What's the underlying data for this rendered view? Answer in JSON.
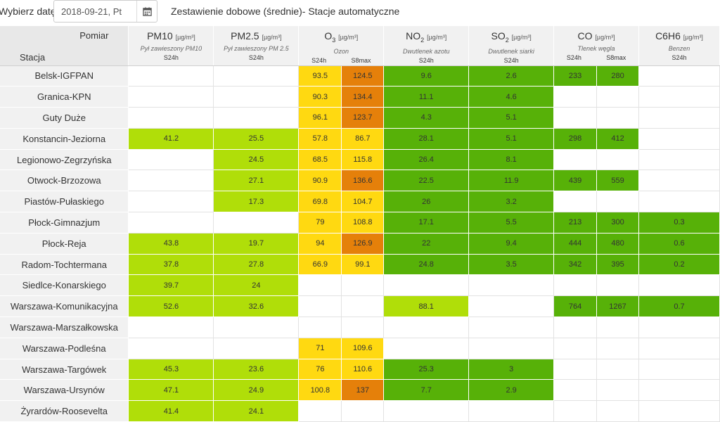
{
  "header": {
    "date_label": "Wybierz datę:",
    "date_value": "2018-09-21, Pt",
    "title": "Zestawienie dobowe (średnie)- Stacje automatyczne",
    "calendar_icon": "calendar-icon"
  },
  "table": {
    "corner_top": "Pomiar",
    "corner_bottom": "Stacja",
    "pollutants": [
      {
        "id": "pm10",
        "name": "PM10",
        "sub": "",
        "unit": "[µg/m³]",
        "desc": "Pył zawieszony PM10",
        "aggs": [
          "S24h"
        ]
      },
      {
        "id": "pm25",
        "name": "PM2.5",
        "sub": "",
        "unit": "[µg/m³]",
        "desc": "Pył zawieszony PM 2.5",
        "aggs": [
          "S24h"
        ]
      },
      {
        "id": "o3",
        "name": "O",
        "sub": "3",
        "unit": "[µg/m³]",
        "desc": "Ozon",
        "aggs": [
          "S24h",
          "S8max"
        ]
      },
      {
        "id": "no2",
        "name": "NO",
        "sub": "2",
        "unit": "[µg/m³]",
        "desc": "Dwutlenek azotu",
        "aggs": [
          "S24h"
        ]
      },
      {
        "id": "so2",
        "name": "SO",
        "sub": "2",
        "unit": "[µg/m³]",
        "desc": "Dwutlenek siarki",
        "aggs": [
          "S24h"
        ]
      },
      {
        "id": "co",
        "name": "CO",
        "sub": "",
        "unit": "[µg/m³]",
        "desc": "Tlenek węgla",
        "aggs": [
          "S24h",
          "S8max"
        ]
      },
      {
        "id": "c6h6",
        "name": "C6H6",
        "sub": "",
        "unit": "[µg/m³]",
        "desc": "Benzen",
        "aggs": [
          "S24h"
        ]
      }
    ],
    "colors": {
      "lg": "#b0de09",
      "dg": "#57b108",
      "yl": "#ffd911",
      "or": "#e5800a"
    },
    "rows": [
      {
        "station": "Belsk-IGFPAN",
        "cells": [
          [
            "",
            ""
          ],
          [
            "",
            ""
          ],
          [
            "93.5",
            "yl"
          ],
          [
            "124.5",
            "or"
          ],
          [
            "9.6",
            "dg"
          ],
          [
            "2.6",
            "dg"
          ],
          [
            "233",
            "dg"
          ],
          [
            "280",
            "dg"
          ],
          [
            "",
            ""
          ]
        ]
      },
      {
        "station": "Granica-KPN",
        "cells": [
          [
            "",
            ""
          ],
          [
            "",
            ""
          ],
          [
            "90.3",
            "yl"
          ],
          [
            "134.4",
            "or"
          ],
          [
            "11.1",
            "dg"
          ],
          [
            "4.6",
            "dg"
          ],
          [
            "",
            ""
          ],
          [
            "",
            ""
          ],
          [
            "",
            ""
          ]
        ]
      },
      {
        "station": "Guty Duże",
        "cells": [
          [
            "",
            ""
          ],
          [
            "",
            ""
          ],
          [
            "96.1",
            "yl"
          ],
          [
            "123.7",
            "or"
          ],
          [
            "4.3",
            "dg"
          ],
          [
            "5.1",
            "dg"
          ],
          [
            "",
            ""
          ],
          [
            "",
            ""
          ],
          [
            "",
            ""
          ]
        ]
      },
      {
        "station": "Konstancin-Jeziorna",
        "cells": [
          [
            "41.2",
            "lg"
          ],
          [
            "25.5",
            "lg"
          ],
          [
            "57.8",
            "yl"
          ],
          [
            "86.7",
            "yl"
          ],
          [
            "28.1",
            "dg"
          ],
          [
            "5.1",
            "dg"
          ],
          [
            "298",
            "dg"
          ],
          [
            "412",
            "dg"
          ],
          [
            "",
            ""
          ]
        ]
      },
      {
        "station": "Legionowo-Zegrzyńska",
        "cells": [
          [
            "",
            ""
          ],
          [
            "24.5",
            "lg"
          ],
          [
            "68.5",
            "yl"
          ],
          [
            "115.8",
            "yl"
          ],
          [
            "26.4",
            "dg"
          ],
          [
            "8.1",
            "dg"
          ],
          [
            "",
            ""
          ],
          [
            "",
            ""
          ],
          [
            "",
            ""
          ]
        ]
      },
      {
        "station": "Otwock-Brzozowa",
        "cells": [
          [
            "",
            ""
          ],
          [
            "27.1",
            "lg"
          ],
          [
            "90.9",
            "yl"
          ],
          [
            "136.6",
            "or"
          ],
          [
            "22.5",
            "dg"
          ],
          [
            "11.9",
            "dg"
          ],
          [
            "439",
            "dg"
          ],
          [
            "559",
            "dg"
          ],
          [
            "",
            ""
          ]
        ]
      },
      {
        "station": "Piastów-Pułaskiego",
        "cells": [
          [
            "",
            ""
          ],
          [
            "17.3",
            "lg"
          ],
          [
            "69.8",
            "yl"
          ],
          [
            "104.7",
            "yl"
          ],
          [
            "26",
            "dg"
          ],
          [
            "3.2",
            "dg"
          ],
          [
            "",
            ""
          ],
          [
            "",
            ""
          ],
          [
            "",
            ""
          ]
        ]
      },
      {
        "station": "Płock-Gimnazjum",
        "cells": [
          [
            "",
            ""
          ],
          [
            "",
            ""
          ],
          [
            "79",
            "yl"
          ],
          [
            "108.8",
            "yl"
          ],
          [
            "17.1",
            "dg"
          ],
          [
            "5.5",
            "dg"
          ],
          [
            "213",
            "dg"
          ],
          [
            "300",
            "dg"
          ],
          [
            "0.3",
            "dg"
          ]
        ]
      },
      {
        "station": "Płock-Reja",
        "cells": [
          [
            "43.8",
            "lg"
          ],
          [
            "19.7",
            "lg"
          ],
          [
            "94",
            "yl"
          ],
          [
            "126.9",
            "or"
          ],
          [
            "22",
            "dg"
          ],
          [
            "9.4",
            "dg"
          ],
          [
            "444",
            "dg"
          ],
          [
            "480",
            "dg"
          ],
          [
            "0.6",
            "dg"
          ]
        ]
      },
      {
        "station": "Radom-Tochtermana",
        "cells": [
          [
            "37.8",
            "lg"
          ],
          [
            "27.8",
            "lg"
          ],
          [
            "66.9",
            "yl"
          ],
          [
            "99.1",
            "yl"
          ],
          [
            "24.8",
            "dg"
          ],
          [
            "3.5",
            "dg"
          ],
          [
            "342",
            "dg"
          ],
          [
            "395",
            "dg"
          ],
          [
            "0.2",
            "dg"
          ]
        ]
      },
      {
        "station": "Siedlce-Konarskiego",
        "cells": [
          [
            "39.7",
            "lg"
          ],
          [
            "24",
            "lg"
          ],
          [
            "",
            ""
          ],
          [
            "",
            ""
          ],
          [
            "",
            ""
          ],
          [
            "",
            ""
          ],
          [
            "",
            ""
          ],
          [
            "",
            ""
          ],
          [
            "",
            ""
          ]
        ]
      },
      {
        "station": "Warszawa-Komunikacyjna",
        "cells": [
          [
            "52.6",
            "lg"
          ],
          [
            "32.6",
            "lg"
          ],
          [
            "",
            ""
          ],
          [
            "",
            ""
          ],
          [
            "88.1",
            "lg"
          ],
          [
            "",
            ""
          ],
          [
            "764",
            "dg"
          ],
          [
            "1267",
            "dg"
          ],
          [
            "0.7",
            "dg"
          ]
        ]
      },
      {
        "station": "Warszawa-Marszałkowska",
        "cells": [
          [
            "",
            ""
          ],
          [
            "",
            ""
          ],
          [
            "",
            ""
          ],
          [
            "",
            ""
          ],
          [
            "",
            ""
          ],
          [
            "",
            ""
          ],
          [
            "",
            ""
          ],
          [
            "",
            ""
          ],
          [
            "",
            ""
          ]
        ]
      },
      {
        "station": "Warszawa-Podleśna",
        "cells": [
          [
            "",
            ""
          ],
          [
            "",
            ""
          ],
          [
            "71",
            "yl"
          ],
          [
            "109.6",
            "yl"
          ],
          [
            "",
            ""
          ],
          [
            "",
            ""
          ],
          [
            "",
            ""
          ],
          [
            "",
            ""
          ],
          [
            "",
            ""
          ]
        ]
      },
      {
        "station": "Warszawa-Targówek",
        "cells": [
          [
            "45.3",
            "lg"
          ],
          [
            "23.6",
            "lg"
          ],
          [
            "76",
            "yl"
          ],
          [
            "110.6",
            "yl"
          ],
          [
            "25.3",
            "dg"
          ],
          [
            "3",
            "dg"
          ],
          [
            "",
            ""
          ],
          [
            "",
            ""
          ],
          [
            "",
            ""
          ]
        ]
      },
      {
        "station": "Warszawa-Ursynów",
        "cells": [
          [
            "47.1",
            "lg"
          ],
          [
            "24.9",
            "lg"
          ],
          [
            "100.8",
            "yl"
          ],
          [
            "137",
            "or"
          ],
          [
            "7.7",
            "dg"
          ],
          [
            "2.9",
            "dg"
          ],
          [
            "",
            ""
          ],
          [
            "",
            ""
          ],
          [
            "",
            ""
          ]
        ]
      },
      {
        "station": "Żyrardów-Roosevelta",
        "cells": [
          [
            "41.4",
            "lg"
          ],
          [
            "24.1",
            "lg"
          ],
          [
            "",
            ""
          ],
          [
            "",
            ""
          ],
          [
            "",
            ""
          ],
          [
            "",
            ""
          ],
          [
            "",
            ""
          ],
          [
            "",
            ""
          ],
          [
            "",
            ""
          ]
        ]
      }
    ]
  }
}
